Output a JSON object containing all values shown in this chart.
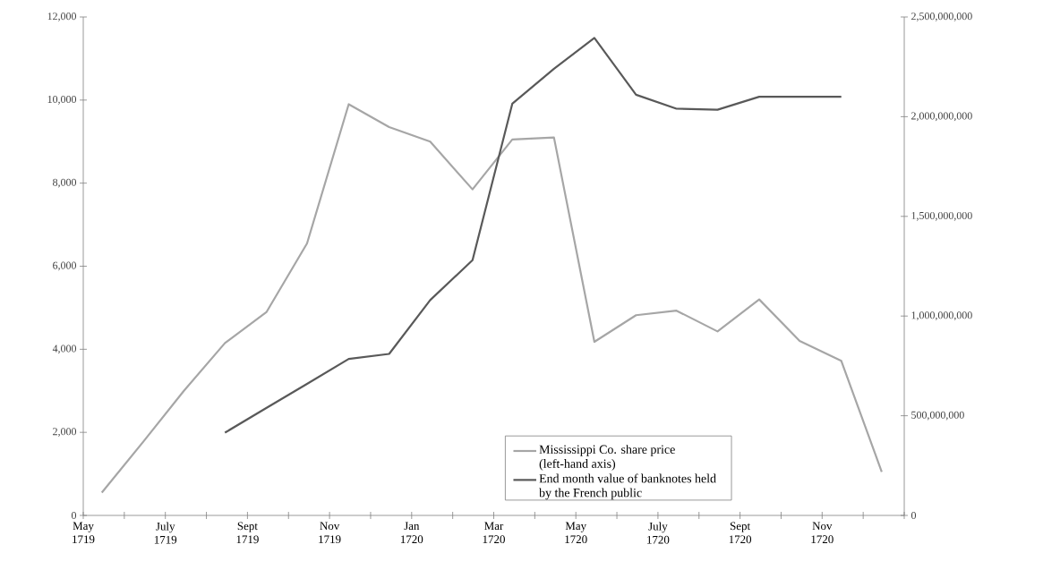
{
  "chart_data": {
    "type": "line",
    "xlim": [
      "1719-05",
      "1721-01"
    ],
    "xticks": [
      {
        "value": "1719-05",
        "label": "May 1719"
      },
      {
        "value": "1719-06",
        "label": null
      },
      {
        "value": "1719-07",
        "label": "July 1719"
      },
      {
        "value": "1719-08",
        "label": null
      },
      {
        "value": "1719-09",
        "label": "Sept 1719"
      },
      {
        "value": "1719-10",
        "label": null
      },
      {
        "value": "1719-11",
        "label": "Nov 1719"
      },
      {
        "value": "1719-12",
        "label": null
      },
      {
        "value": "1720-01",
        "label": "Jan 1720"
      },
      {
        "value": "1720-02",
        "label": null
      },
      {
        "value": "1720-03",
        "label": "Mar 1720"
      },
      {
        "value": "1720-04",
        "label": null
      },
      {
        "value": "1720-05",
        "label": "May 1720"
      },
      {
        "value": "1720-06",
        "label": null
      },
      {
        "value": "1720-07",
        "label": "July 1720"
      },
      {
        "value": "1720-08",
        "label": null
      },
      {
        "value": "1720-09",
        "label": "Sept 1720"
      },
      {
        "value": "1720-10",
        "label": null
      },
      {
        "value": "1720-11",
        "label": "Nov 1720"
      },
      {
        "value": "1720-12",
        "label": null
      },
      {
        "value": "1721-01",
        "label": null
      }
    ],
    "ylim": [
      0,
      12000
    ],
    "yticks": [
      0,
      {
        "value": 2000,
        "label": "2,000"
      },
      {
        "value": 4000,
        "label": "4,000"
      },
      {
        "value": 6000,
        "label": "6,000"
      },
      {
        "value": 8000,
        "label": "8,000"
      },
      {
        "value": 10000,
        "label": "10,000"
      },
      {
        "value": 12000,
        "label": "12,000"
      }
    ],
    "y2lim": [
      0,
      2500000000
    ],
    "y2ticks": [
      0,
      {
        "value": 500000000,
        "label": "500,000,000"
      },
      {
        "value": 1000000000,
        "label": "1,000,000,000"
      },
      {
        "value": 1500000000,
        "label": "1,500,000,000"
      },
      {
        "value": 2000000000,
        "label": "2,000,000,000"
      },
      {
        "value": 2500000000,
        "label": "2,500,000,000"
      }
    ],
    "grid": false,
    "legend": "bottom right",
    "series": [
      {
        "name": "Mississippi Co. share price (left-hand axis)",
        "color": "#a6a6a6",
        "x": [
          "1719-05-15",
          "1719-06-15",
          "1719-07-15",
          "1719-08-15",
          "1719-09-15",
          "1719-10-15",
          "1719-11-15",
          "1719-12-15",
          "1720-01-15",
          "1720-02-15",
          "1720-03-15",
          "1720-04-15",
          "1720-05-15",
          "1720-06-15",
          "1720-07-15",
          "1720-08-15",
          "1720-09-15",
          "1720-10-15",
          "1720-11-15",
          "1720-12-15"
        ],
        "values": [
          550,
          1780,
          3000,
          4150,
          4900,
          6550,
          9900,
          9350,
          9000,
          7850,
          9050,
          9100,
          4180,
          4820,
          4930,
          4430,
          5200,
          4200,
          3720,
          1050
        ]
      },
      {
        "name": "End month value of banknotes held by the French public",
        "color": "#595959",
        "axis": "y2",
        "x": [
          "1719-08-15",
          "1719-09-15",
          "1719-10-15",
          "1719-11-15",
          "1719-12-15",
          "1720-01-15",
          "1720-02-15",
          "1720-03-15",
          "1720-04-15",
          "1720-05-15",
          "1720-06-15",
          "1720-07-15",
          "1720-08-15",
          "1720-09-15",
          "1720-10-15",
          "1720-11-15"
        ],
        "values": [
          415000000,
          540000000,
          660000000,
          785000000,
          810000000,
          1080000000,
          1280000000,
          2065000000,
          2240000000,
          2395000000,
          2110000000,
          2040000000,
          2035000000,
          2100000000,
          2100000000,
          2100000000
        ]
      }
    ]
  }
}
